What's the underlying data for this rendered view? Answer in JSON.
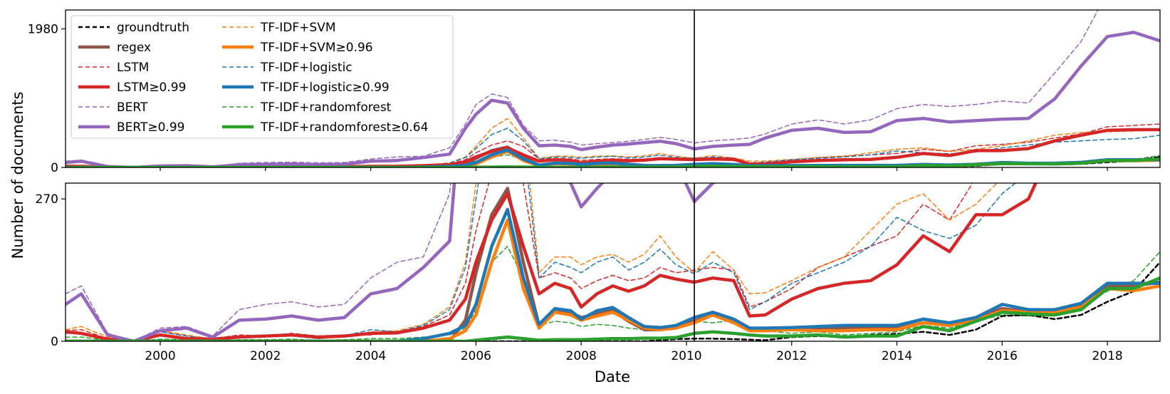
{
  "chart_data": {
    "type": "line",
    "xlabel": "Date",
    "ylabel": "Number of documents",
    "x_ticks": [
      "2000",
      "2002",
      "2004",
      "2006",
      "2008",
      "2010",
      "2012",
      "2014",
      "2016",
      "2018"
    ],
    "x_tick_values": [
      2000,
      2002,
      2004,
      2006,
      2008,
      2010,
      2012,
      2014,
      2016,
      2018
    ],
    "xlim": [
      1998.2,
      2019.0
    ],
    "vline_x": 2010.15,
    "top_panel": {
      "ylim": [
        0,
        2250
      ],
      "y_ticks": [
        "0",
        "1980"
      ],
      "y_tick_values": [
        0,
        1980
      ]
    },
    "bottom_panel": {
      "ylim": [
        0,
        300
      ],
      "y_ticks": [
        "0",
        "270"
      ],
      "y_tick_values": [
        0,
        270
      ]
    },
    "x": [
      1998.2,
      1998.5,
      1999.0,
      1999.5,
      2000.0,
      2000.5,
      2001.0,
      2001.5,
      2002.0,
      2002.5,
      2003.0,
      2003.5,
      2004.0,
      2004.5,
      2005.0,
      2005.5,
      2005.8,
      2006.0,
      2006.3,
      2006.6,
      2006.9,
      2007.2,
      2007.5,
      2007.8,
      2008.0,
      2008.3,
      2008.6,
      2008.9,
      2009.2,
      2009.5,
      2009.8,
      2010.15,
      2010.5,
      2010.9,
      2011.2,
      2011.5,
      2012.0,
      2012.5,
      2013.0,
      2013.5,
      2014.0,
      2014.5,
      2015.0,
      2015.5,
      2016.0,
      2016.5,
      2017.0,
      2017.5,
      2018.0,
      2018.5,
      2019.0
    ],
    "legend": {
      "position": "upper-left",
      "columns": [
        [
          "groundtruth",
          "regex",
          "LSTM",
          "LSTM≥0.99",
          "BERT",
          "BERT≥0.99"
        ],
        [
          "TF-IDF+SVM",
          "TF-IDF+SVM≥0.96",
          "TF-IDF+logistic",
          "TF-IDF+logistic≥0.99",
          "TF-IDF+randomforest",
          "TF-IDF+randomforest≥0.64"
        ]
      ]
    },
    "series": [
      {
        "name": "groundtruth",
        "color": "#000000",
        "style": "dashed",
        "width": 2.5,
        "values": [
          0,
          0,
          0,
          0,
          0,
          0,
          0,
          0,
          0,
          0,
          0,
          0,
          0,
          0,
          0,
          0,
          0,
          0,
          0,
          0,
          0,
          0,
          0,
          0,
          0,
          0,
          0,
          0,
          0,
          2,
          4,
          5,
          5,
          4,
          3,
          2,
          8,
          10,
          8,
          12,
          14,
          18,
          12,
          22,
          48,
          50,
          42,
          50,
          75,
          95,
          150
        ]
      },
      {
        "name": "regex",
        "color": "#8c564b",
        "style": "solid",
        "width": 4.5,
        "values": [
          0,
          0,
          0,
          0,
          0,
          0,
          0,
          0,
          0,
          0,
          0,
          0,
          0,
          0,
          0,
          0,
          40,
          130,
          240,
          290,
          150,
          30,
          60,
          55,
          45,
          52,
          58,
          38,
          22,
          22,
          28,
          38,
          50,
          38,
          25,
          22,
          25,
          24,
          25,
          26,
          28,
          42,
          32,
          45,
          62,
          56,
          58,
          70,
          105,
          105,
          112
        ]
      },
      {
        "name": "LSTM",
        "color": "#d62728",
        "style": "dashed",
        "width": 1.5,
        "values": [
          20,
          22,
          5,
          0,
          18,
          10,
          5,
          12,
          10,
          15,
          10,
          12,
          12,
          18,
          28,
          50,
          110,
          210,
          320,
          380,
          300,
          120,
          130,
          120,
          100,
          115,
          125,
          115,
          120,
          140,
          130,
          135,
          140,
          135,
          65,
          75,
          100,
          140,
          160,
          180,
          200,
          260,
          230,
          310,
          330,
          360,
          420,
          480,
          580,
          600,
          620
        ]
      },
      {
        "name": "LSTM≥0.99",
        "color": "#d62728",
        "style": "solid",
        "width": 4.5,
        "values": [
          18,
          15,
          4,
          0,
          12,
          5,
          4,
          8,
          10,
          12,
          8,
          10,
          15,
          16,
          25,
          40,
          80,
          150,
          230,
          280,
          180,
          90,
          110,
          100,
          65,
          90,
          105,
          95,
          105,
          125,
          118,
          112,
          120,
          115,
          48,
          50,
          80,
          100,
          110,
          115,
          145,
          200,
          170,
          240,
          240,
          270,
          380,
          460,
          530,
          540,
          540
        ]
      },
      {
        "name": "BERT",
        "color": "#9467bd",
        "style": "dashed",
        "width": 1.5,
        "values": [
          90,
          105,
          15,
          0,
          25,
          28,
          10,
          60,
          70,
          75,
          65,
          70,
          120,
          150,
          160,
          280,
          620,
          900,
          1050,
          1000,
          600,
          380,
          390,
          360,
          320,
          340,
          355,
          375,
          400,
          430,
          400,
          350,
          380,
          400,
          420,
          480,
          620,
          680,
          620,
          680,
          840,
          900,
          870,
          900,
          950,
          920,
          1350,
          1800,
          2500,
          2700,
          2800
        ]
      },
      {
        "name": "BERT≥0.99",
        "color": "#9467bd",
        "style": "solid",
        "width": 4.5,
        "values": [
          70,
          90,
          12,
          0,
          20,
          25,
          8,
          40,
          42,
          48,
          40,
          45,
          90,
          100,
          140,
          190,
          560,
          760,
          960,
          920,
          560,
          310,
          320,
          300,
          255,
          290,
          320,
          335,
          355,
          375,
          340,
          265,
          300,
          320,
          330,
          420,
          530,
          560,
          500,
          510,
          670,
          700,
          650,
          670,
          690,
          700,
          980,
          1450,
          1870,
          1930,
          1810
        ]
      },
      {
        "name": "TF-IDF+SVM",
        "color": "#ff7f0e",
        "style": "dashed",
        "width": 1.5,
        "values": [
          22,
          28,
          8,
          0,
          20,
          12,
          4,
          10,
          10,
          12,
          5,
          8,
          18,
          20,
          32,
          65,
          150,
          300,
          560,
          700,
          420,
          130,
          160,
          160,
          145,
          160,
          165,
          150,
          165,
          200,
          160,
          130,
          170,
          135,
          90,
          92,
          115,
          140,
          160,
          210,
          260,
          280,
          230,
          260,
          310,
          380,
          460,
          500,
          510,
          520,
          540
        ]
      },
      {
        "name": "TF-IDF+SVM≥0.96",
        "color": "#ff7f0e",
        "style": "solid",
        "width": 4.5,
        "values": [
          0,
          0,
          0,
          0,
          0,
          0,
          0,
          0,
          0,
          0,
          0,
          0,
          0,
          0,
          0,
          5,
          20,
          50,
          150,
          230,
          100,
          25,
          55,
          50,
          40,
          48,
          55,
          40,
          25,
          22,
          25,
          35,
          50,
          35,
          20,
          20,
          22,
          20,
          20,
          22,
          22,
          35,
          30,
          40,
          58,
          55,
          55,
          65,
          100,
          96,
          105
        ]
      },
      {
        "name": "TF-IDF+logistic",
        "color": "#1f77b4",
        "style": "dashed",
        "width": 1.5,
        "values": [
          15,
          15,
          5,
          0,
          18,
          10,
          3,
          8,
          8,
          10,
          5,
          10,
          22,
          18,
          30,
          60,
          140,
          270,
          470,
          560,
          380,
          120,
          150,
          140,
          130,
          150,
          160,
          135,
          150,
          175,
          145,
          128,
          150,
          130,
          60,
          75,
          110,
          130,
          150,
          180,
          235,
          210,
          195,
          220,
          280,
          320,
          360,
          380,
          400,
          410,
          460
        ]
      },
      {
        "name": "TF-IDF+logistic≥0.99",
        "color": "#1f77b4",
        "style": "solid",
        "width": 4.5,
        "values": [
          0,
          0,
          0,
          0,
          0,
          0,
          0,
          0,
          0,
          0,
          0,
          0,
          0,
          0,
          5,
          15,
          30,
          70,
          180,
          250,
          120,
          32,
          62,
          58,
          42,
          58,
          64,
          45,
          28,
          26,
          30,
          45,
          55,
          42,
          25,
          25,
          26,
          28,
          30,
          30,
          30,
          42,
          35,
          45,
          70,
          60,
          60,
          72,
          110,
          110,
          110
        ]
      },
      {
        "name": "TF-IDF+randomforest",
        "color": "#2ca02c",
        "style": "dashed",
        "width": 1.5,
        "values": [
          8,
          8,
          2,
          0,
          4,
          3,
          1,
          3,
          3,
          4,
          2,
          3,
          5,
          5,
          8,
          12,
          25,
          60,
          150,
          180,
          120,
          30,
          38,
          35,
          28,
          32,
          30,
          25,
          22,
          25,
          30,
          38,
          35,
          40,
          22,
          20,
          15,
          18,
          12,
          15,
          18,
          30,
          25,
          38,
          50,
          48,
          48,
          70,
          95,
          115,
          170
        ]
      },
      {
        "name": "TF-IDF+randomforest≥0.64",
        "color": "#2ca02c",
        "style": "solid",
        "width": 4.5,
        "values": [
          0,
          0,
          0,
          0,
          0,
          0,
          0,
          0,
          0,
          0,
          0,
          0,
          0,
          0,
          0,
          0,
          0,
          2,
          5,
          8,
          5,
          2,
          3,
          3,
          3,
          4,
          5,
          5,
          6,
          6,
          7,
          15,
          18,
          15,
          12,
          10,
          10,
          12,
          8,
          10,
          10,
          28,
          20,
          38,
          55,
          52,
          50,
          60,
          100,
          100,
          120
        ]
      }
    ]
  }
}
